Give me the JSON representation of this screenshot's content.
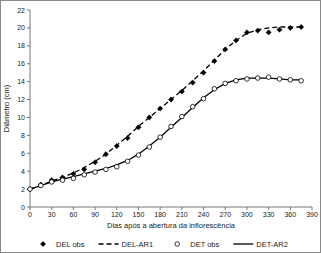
{
  "chart_data": {
    "type": "line",
    "x_label": "Dias após a abertura da inflorescência",
    "y_label": "Diâmetro (cm)",
    "x": [
      0,
      15,
      30,
      45,
      60,
      75,
      90,
      105,
      120,
      135,
      150,
      165,
      180,
      195,
      210,
      225,
      240,
      255,
      270,
      285,
      300,
      315,
      330,
      345,
      360,
      375
    ],
    "series": [
      {
        "name": "DEL obs",
        "type": "scatter",
        "marker": "diamond",
        "color": "#000000",
        "values": [
          2.0,
          2.5,
          3.0,
          3.3,
          3.7,
          4.2,
          5.0,
          5.9,
          6.8,
          7.7,
          8.9,
          10.0,
          11.0,
          12.0,
          12.9,
          13.9,
          15.0,
          16.3,
          17.6,
          18.6,
          19.5,
          19.7,
          19.5,
          19.8,
          20.0,
          20.1
        ]
      },
      {
        "name": "DEL-AR1",
        "type": "line",
        "line_style": "dashed",
        "color": "#000000",
        "values": [
          2.0,
          2.4,
          2.9,
          3.3,
          3.8,
          4.4,
          5.1,
          5.9,
          6.9,
          7.9,
          9.0,
          10.0,
          11.0,
          12.0,
          13.0,
          14.1,
          15.2,
          16.4,
          17.6,
          18.6,
          19.4,
          19.8,
          20.0,
          20.1,
          20.1,
          20.1
        ]
      },
      {
        "name": "DET obs",
        "type": "scatter",
        "marker": "open-circle",
        "color": "#000000",
        "values": [
          2.0,
          2.4,
          2.8,
          3.0,
          3.2,
          3.6,
          3.9,
          4.2,
          4.5,
          5.1,
          5.8,
          6.7,
          7.8,
          9.0,
          10.1,
          11.2,
          12.1,
          13.2,
          13.8,
          14.1,
          14.3,
          14.4,
          14.5,
          14.3,
          14.2,
          14.1
        ]
      },
      {
        "name": "DET-AR2",
        "type": "line",
        "line_style": "solid",
        "color": "#000000",
        "values": [
          2.0,
          2.4,
          2.8,
          3.1,
          3.4,
          3.7,
          4.0,
          4.3,
          4.7,
          5.2,
          5.9,
          6.8,
          7.8,
          8.9,
          10.0,
          11.1,
          12.2,
          13.1,
          13.8,
          14.2,
          14.4,
          14.4,
          14.4,
          14.3,
          14.2,
          14.2
        ]
      }
    ],
    "xlim": [
      0,
      390
    ],
    "xticks": [
      0,
      30,
      60,
      90,
      120,
      150,
      180,
      210,
      240,
      270,
      300,
      330,
      360,
      390
    ],
    "ylim": [
      0,
      22
    ],
    "yticks": [
      0,
      2,
      4,
      6,
      8,
      10,
      12,
      14,
      16,
      18,
      20,
      22
    ],
    "grid": false,
    "legend": "bottom"
  }
}
